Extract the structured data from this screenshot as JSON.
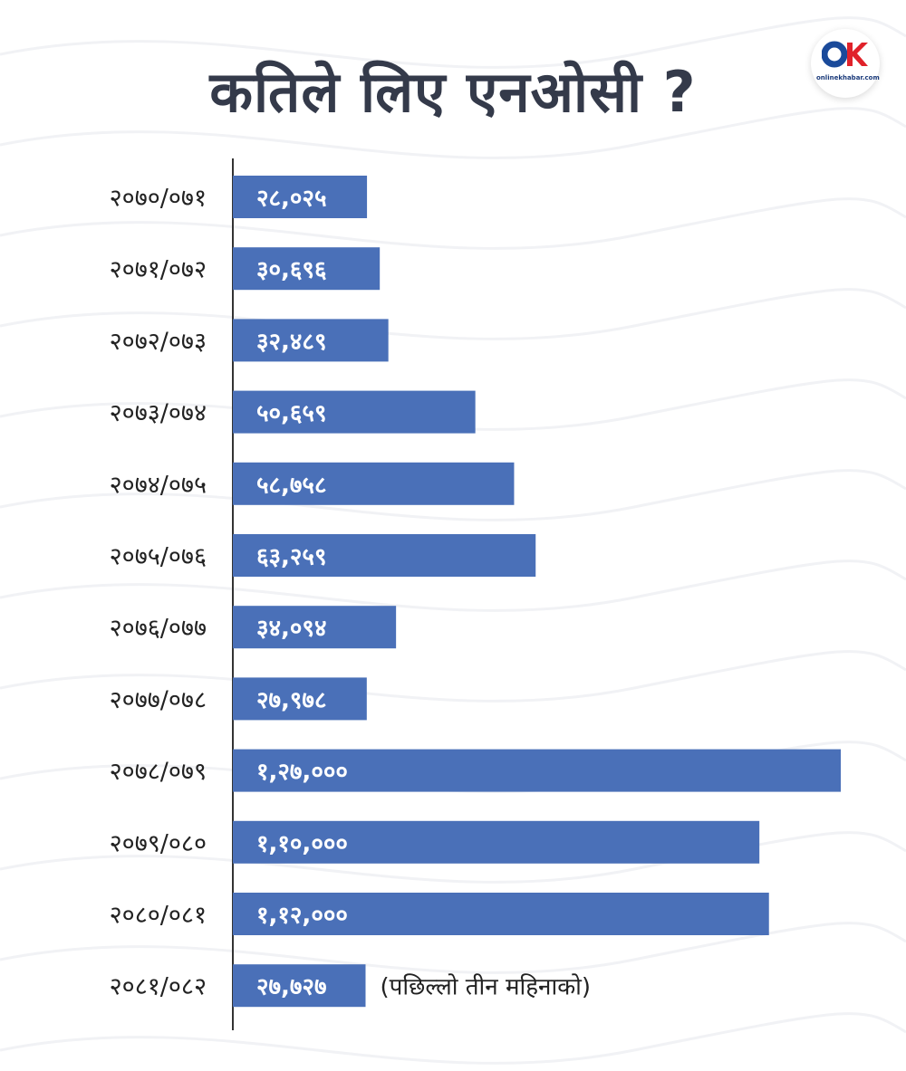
{
  "title": "कतिले लिए एनओसी ?",
  "logo": {
    "text": "onlinekhabar.com",
    "colors": {
      "o": "#1a4a9a",
      "k": "#e0222a"
    }
  },
  "colors": {
    "bar": "#4a70b8",
    "title": "#343a4a",
    "text": "#222222",
    "background": "#ffffff"
  },
  "chart_data": {
    "type": "bar",
    "orientation": "horizontal",
    "title": "कतिले लिए एनओसी ?",
    "categories": [
      "२०७०/०७१",
      "२०७१/०७२",
      "२०७२/०७३",
      "२०७३/०७४",
      "२०७४/०७५",
      "२०७५/०७६",
      "२०७६/०७७",
      "२०७७/०७८",
      "२०७८/०७९",
      "२०७९/०८०",
      "२०८०/०८१",
      "२०८१/०८२"
    ],
    "values": [
      28025,
      30696,
      32489,
      50659,
      58758,
      63259,
      34094,
      27978,
      127000,
      110000,
      112000,
      27727
    ],
    "value_labels": [
      "२८,०२५",
      "३०,६९६",
      "३२,४८९",
      "५०,६५९",
      "५८,७५८",
      "६३,२५९",
      "३४,०९४",
      "२७,९७८",
      "१,२७,०००",
      "१,१०,०००",
      "१,१२,०००",
      "२७,७२७"
    ],
    "annotations": [
      {
        "category": "२०८१/०८२",
        "text": "(पछिल्लो तीन महिनाको)"
      }
    ],
    "xlim": [
      0,
      127000
    ],
    "grid": false,
    "legend": "none"
  }
}
